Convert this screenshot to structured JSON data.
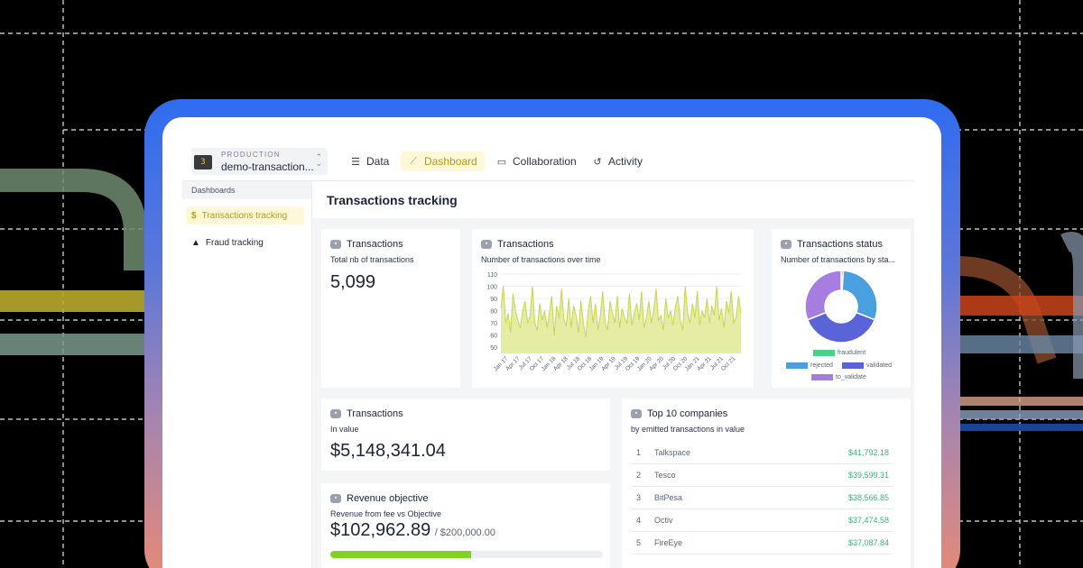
{
  "topbar": {
    "env_label": "PRODUCTION",
    "env_name": "demo-transaction...",
    "env_icon": "3",
    "tabs": [
      {
        "label": "Data",
        "icon": "list-icon"
      },
      {
        "label": "Dashboard",
        "icon": "trend-icon",
        "active": true
      },
      {
        "label": "Collaboration",
        "icon": "chat-icon"
      },
      {
        "label": "Activity",
        "icon": "history-icon"
      }
    ]
  },
  "sidebar": {
    "heading": "Dashboards",
    "items": [
      {
        "label": "Transactions tracking",
        "icon": "dollar-icon",
        "active": true
      },
      {
        "label": "Fraud tracking",
        "icon": "warning-icon"
      }
    ]
  },
  "main": {
    "title": "Transactions tracking"
  },
  "cards": {
    "total": {
      "title": "Transactions",
      "subtitle": "Total nb of transactions",
      "value": "5,099"
    },
    "over_time": {
      "title": "Transactions",
      "subtitle": "Number of transactions over time"
    },
    "status": {
      "title": "Transactions status",
      "subtitle": "Number of transactions by sta..."
    },
    "in_value": {
      "title": "Transactions",
      "subtitle": "In value",
      "value": "$5,148,341.04"
    },
    "revenue": {
      "title": "Revenue objective",
      "subtitle": "Revenue from fee vs Objective",
      "value": "$102,962.89",
      "objective": "/ $200,000.00",
      "progress": 0.515
    },
    "top10": {
      "title": "Top 10 companies",
      "subtitle": "by emitted transactions in value",
      "rows": [
        {
          "rank": "1",
          "name": "Talkspace",
          "value": "$41,792.18"
        },
        {
          "rank": "2",
          "name": "Tesco",
          "value": "$39,599.31"
        },
        {
          "rank": "3",
          "name": "BitPesa",
          "value": "$38,566.85"
        },
        {
          "rank": "4",
          "name": "Octiv",
          "value": "$37,474.58"
        },
        {
          "rank": "5",
          "name": "FireEye",
          "value": "$37,087.84"
        }
      ]
    }
  },
  "chart_data": [
    {
      "type": "area",
      "yticks": [
        "110",
        "100",
        "90",
        "80",
        "70",
        "60",
        "50"
      ],
      "ylim": [
        45,
        110
      ],
      "xticks": [
        "Jan 17",
        "Apr 17",
        "Jul 17",
        "Oct 17",
        "Jan 18",
        "Apr 18",
        "Jul 18",
        "Oct 18",
        "Jan 19",
        "Apr 19",
        "Jul 19",
        "Oct 19",
        "Jan 20",
        "Apr 20",
        "Jul 20",
        "Oct 20",
        "Jan 21",
        "Apr 21",
        "Jul 21",
        "Oct 21"
      ],
      "values": [
        82,
        100,
        70,
        78,
        62,
        94,
        80,
        72,
        66,
        80,
        88,
        70,
        75,
        100,
        70,
        64,
        86,
        72,
        80,
        66,
        78,
        92,
        60,
        84,
        74,
        98,
        72,
        68,
        90,
        66,
        84,
        76,
        62,
        88,
        70,
        58,
        80,
        92,
        70,
        86,
        64,
        76,
        96,
        70,
        64,
        88,
        78,
        70,
        92,
        66,
        82,
        74,
        70,
        94,
        68,
        78,
        86,
        72,
        96,
        66,
        74,
        88,
        70,
        80,
        98,
        72,
        76,
        64,
        90,
        74,
        80,
        68,
        84,
        92,
        72,
        64,
        100,
        78,
        70,
        86,
        74,
        96,
        68,
        80,
        74,
        90,
        70,
        84,
        76,
        100,
        72,
        82,
        66,
        88,
        78,
        96,
        70,
        74,
        92,
        78
      ],
      "color": "#dfe98f",
      "line_color": "#c9d44f"
    },
    {
      "type": "pie",
      "slices": [
        {
          "name": "fraudulent",
          "value": 1,
          "color": "#4cd08c"
        },
        {
          "name": "rejected",
          "value": 30,
          "color": "#4a9fde"
        },
        {
          "name": "validated",
          "value": 38,
          "color": "#5a63d8"
        },
        {
          "name": "to_validate",
          "value": 31,
          "color": "#a57ee0"
        }
      ]
    }
  ]
}
